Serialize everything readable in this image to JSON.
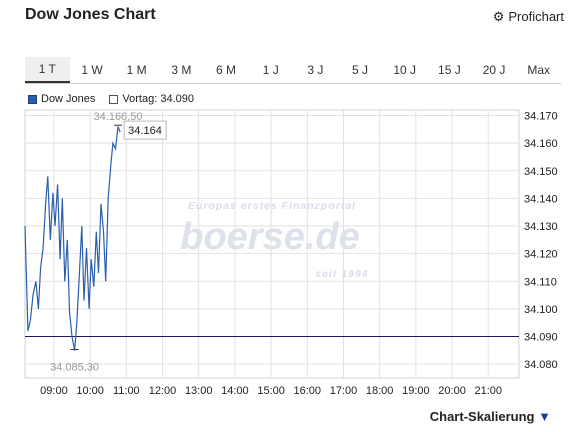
{
  "header": {
    "title": "Dow Jones Chart",
    "profichart_label": "Profichart",
    "profichart_icon": "gear-icon"
  },
  "tabs": [
    {
      "label": "1 T",
      "active": true
    },
    {
      "label": "1 W"
    },
    {
      "label": "1 M"
    },
    {
      "label": "3 M"
    },
    {
      "label": "6 M"
    },
    {
      "label": "1 J"
    },
    {
      "label": "3 J"
    },
    {
      "label": "5 J"
    },
    {
      "label": "10 J"
    },
    {
      "label": "15 J"
    },
    {
      "label": "20 J"
    },
    {
      "label": "Max"
    }
  ],
  "legend": {
    "series_label": "Dow Jones",
    "prev_close_label": "Vortag: 34.090"
  },
  "watermark": {
    "line1": "Europas erstes Finanzportal",
    "line2": "boerse.de",
    "line3": "seit 1994"
  },
  "footer": {
    "label": "Chart-Skalierung",
    "arrow": "▼"
  },
  "colors": {
    "line": "#2a5eae",
    "prev_close": "#1a1a5e",
    "grid": "#e2e2e2"
  },
  "chart_data": {
    "type": "line",
    "x_ticks": [
      "09:00",
      "10:00",
      "11:00",
      "12:00",
      "13:00",
      "14:00",
      "15:00",
      "16:00",
      "17:00",
      "18:00",
      "19:00",
      "20:00",
      "21:00"
    ],
    "y_ticks": [
      "34.170",
      "34.160",
      "34.150",
      "34.140",
      "34.130",
      "34.120",
      "34.110",
      "34.100",
      "34.090",
      "34.080"
    ],
    "ylim": [
      34.075,
      34.172
    ],
    "xlim_hours": [
      8.2,
      21.85
    ],
    "prev_close": 34.09,
    "high_label": "34.166,50",
    "low_label": "34.085,30",
    "last_label": "34.164",
    "high": 34.1665,
    "low": 34.0853,
    "last": 34.164,
    "series": [
      {
        "name": "Dow Jones",
        "x": [
          8.2,
          8.28,
          8.35,
          8.42,
          8.5,
          8.57,
          8.63,
          8.7,
          8.77,
          8.83,
          8.9,
          8.97,
          9.03,
          9.1,
          9.17,
          9.23,
          9.3,
          9.37,
          9.43,
          9.5,
          9.57,
          9.63,
          9.7,
          9.77,
          9.83,
          9.9,
          9.97,
          10.03,
          10.1,
          10.17,
          10.23,
          10.3,
          10.37,
          10.43,
          10.5,
          10.57,
          10.63,
          10.7,
          10.77,
          10.83
        ],
        "values": [
          34.13,
          34.092,
          34.096,
          34.105,
          34.11,
          34.1,
          34.115,
          34.122,
          34.138,
          34.148,
          34.125,
          34.142,
          34.13,
          34.145,
          34.118,
          34.14,
          34.11,
          34.125,
          34.099,
          34.09,
          34.085,
          34.095,
          34.112,
          34.13,
          34.103,
          34.122,
          34.1,
          34.118,
          34.108,
          34.128,
          34.113,
          34.138,
          34.128,
          34.11,
          34.14,
          34.152,
          34.16,
          34.158,
          34.166,
          34.164
        ]
      }
    ],
    "xlabel": "",
    "ylabel": "",
    "grid": true,
    "legend_position": "top-left"
  }
}
